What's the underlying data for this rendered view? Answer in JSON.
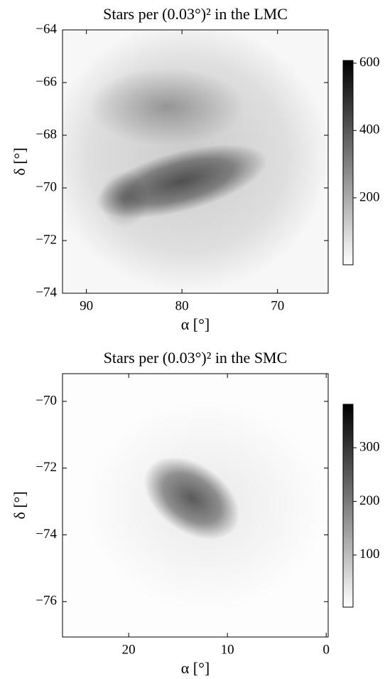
{
  "chart_data": [
    {
      "type": "image",
      "title": "Stars per (0.03°)² in the LMC",
      "xlabel": "α [°]",
      "ylabel": "δ [°]",
      "xlim": [
        92.5,
        64.7
      ],
      "ylim": [
        -74,
        -64
      ],
      "xticks": [
        90,
        80,
        70
      ],
      "yticks": [
        {
          "value": -64,
          "label": "−64"
        },
        {
          "value": -66,
          "label": "−66"
        },
        {
          "value": -68,
          "label": "−68"
        },
        {
          "value": -70,
          "label": "−70"
        },
        {
          "value": -72,
          "label": "−72"
        },
        {
          "value": -74,
          "label": "−74"
        }
      ],
      "colorbar": {
        "cmap": "gray_r",
        "clim": [
          1,
          608
        ],
        "ticks": [
          200,
          400,
          600
        ]
      }
    },
    {
      "type": "image",
      "title": "Stars per (0.03°)² in the SMC",
      "xlabel": "α [°]",
      "ylabel": "δ [°]",
      "xlim": [
        26.7,
        -0.2
      ],
      "ylim": [
        -77.06,
        -69.17
      ],
      "xticks": [
        20,
        10,
        0
      ],
      "yticks": [
        {
          "value": -70,
          "label": "−70"
        },
        {
          "value": -72,
          "label": "−72"
        },
        {
          "value": -74,
          "label": "−74"
        },
        {
          "value": -76,
          "label": "−76"
        }
      ],
      "colorbar": {
        "cmap": "gray_r",
        "clim": [
          3,
          381
        ],
        "ticks": [
          100,
          200,
          300
        ]
      }
    }
  ]
}
